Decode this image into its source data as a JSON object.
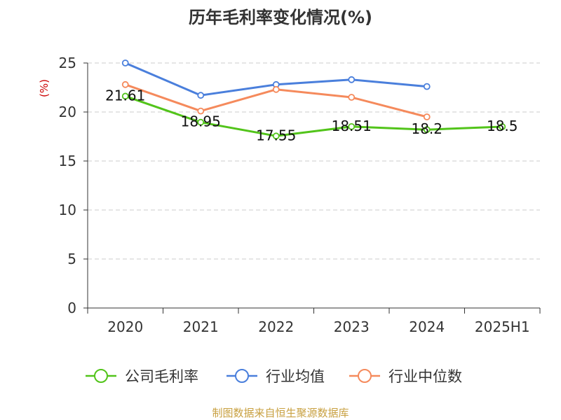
{
  "chart_data": {
    "type": "line",
    "title": "历年毛利率变化情况(%)",
    "ylabel": "(%)",
    "xlabel": "",
    "categories": [
      "2020",
      "2021",
      "2022",
      "2023",
      "2024",
      "2025H1"
    ],
    "ylim": [
      0,
      25
    ],
    "yticks": [
      "0",
      "5",
      "10",
      "15",
      "20",
      "25"
    ],
    "grid": true,
    "legend_position": "bottom",
    "series": [
      {
        "name": "公司毛利率",
        "color": "#52c41a",
        "values": [
          21.61,
          18.95,
          17.55,
          18.51,
          18.2,
          18.5
        ],
        "labels": [
          "21.61",
          "18.95",
          "17.55",
          "18.51",
          "18.2",
          "18.5"
        ]
      },
      {
        "name": "行业均值",
        "color": "#4a7fdc",
        "values": [
          25.0,
          21.7,
          22.8,
          23.3,
          22.6,
          null
        ]
      },
      {
        "name": "行业中位数",
        "color": "#f58a5c",
        "values": [
          22.8,
          20.1,
          22.3,
          21.5,
          19.5,
          null
        ]
      }
    ]
  },
  "source": "制图数据来自恒生聚源数据库",
  "colors": {
    "title": "#333333",
    "ylabel": "#cc0000",
    "source": "#c8a040",
    "grid": "#cccccc",
    "axis": "#333333"
  }
}
